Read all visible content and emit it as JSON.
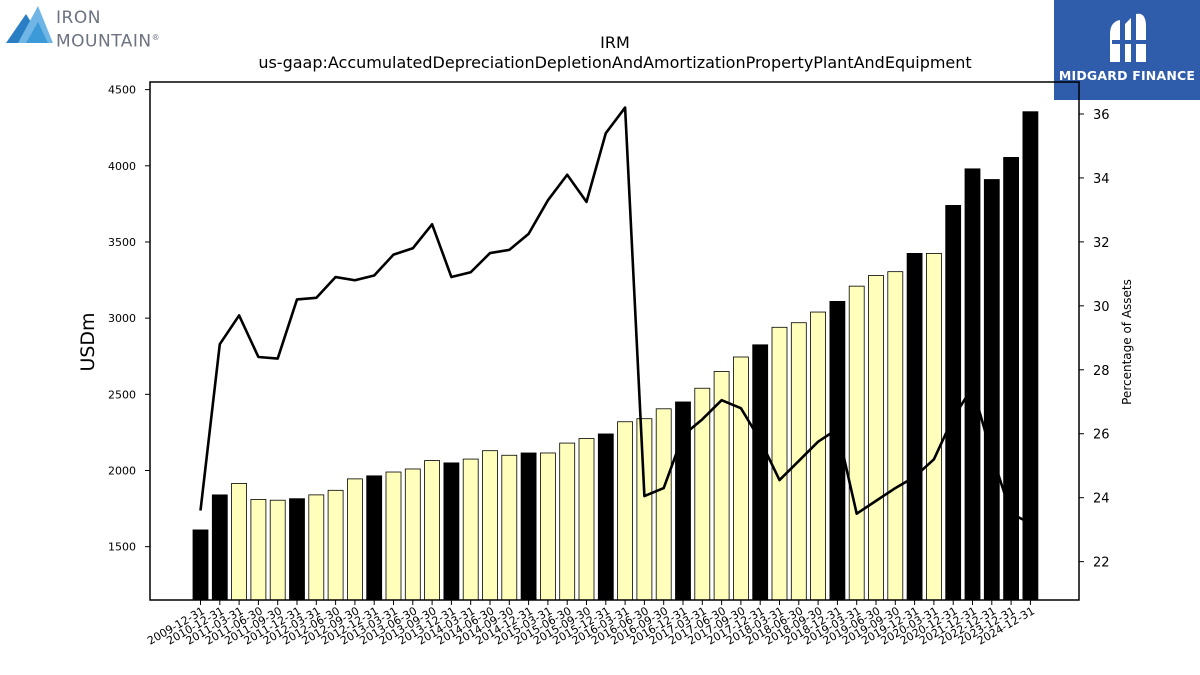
{
  "brand": {
    "left": {
      "line1": "IRON",
      "line2": "MOUNTAIN",
      "reg": "®"
    },
    "right": {
      "name": "MIDGARD FINANCE"
    }
  },
  "chart_data": {
    "type": "bar+line",
    "title": "IRM",
    "subtitle": "us-gaap:AccumulatedDepreciationDepletionAndAmortizationPropertyPlantAndEquipment",
    "ylabel": "USDm",
    "y2label": "Percentage of Assets",
    "ylim": [
      1150,
      4550
    ],
    "y2lim": [
      20.8,
      37.0
    ],
    "yticks": [
      1500,
      2000,
      2500,
      3000,
      3500,
      4000,
      4500
    ],
    "y2ticks": [
      22,
      24,
      26,
      28,
      30,
      32,
      34,
      36
    ],
    "categories": [
      "2009-12-31",
      "2010-12-31",
      "2011-03-31",
      "2011-06-30",
      "2011-09-30",
      "2011-12-31",
      "2012-03-31",
      "2012-06-30",
      "2012-09-30",
      "2012-12-31",
      "2013-03-31",
      "2013-06-30",
      "2013-09-30",
      "2013-12-31",
      "2014-03-31",
      "2014-06-30",
      "2014-09-30",
      "2014-12-31",
      "2015-03-31",
      "2015-06-30",
      "2015-09-30",
      "2015-12-31",
      "2016-03-31",
      "2016-06-30",
      "2016-09-30",
      "2016-12-31",
      "2017-03-31",
      "2017-06-30",
      "2017-09-30",
      "2017-12-31",
      "2018-03-31",
      "2018-06-30",
      "2018-09-30",
      "2018-12-31",
      "2019-03-31",
      "2019-06-30",
      "2019-09-30",
      "2019-12-31",
      "2020-03-31",
      "2020-12-31",
      "2021-12-31",
      "2022-12-31",
      "2023-12-31",
      "2024-12-31"
    ],
    "series": [
      {
        "type": "bar",
        "values": [
          1610,
          1840,
          1915,
          1810,
          1805,
          1815,
          1840,
          1870,
          1945,
          1965,
          1990,
          2010,
          2065,
          2050,
          2075,
          2130,
          2100,
          2115,
          2115,
          2180,
          2210,
          2240,
          2320,
          2340,
          2405,
          2450,
          2540,
          2650,
          2745,
          2825,
          2940,
          2970,
          3040,
          3110,
          3210,
          3280,
          3305,
          3425,
          3425,
          3740,
          3980,
          3910,
          4055,
          4355
        ],
        "period": [
          "FY",
          "FY",
          "Q",
          "Q",
          "Q",
          "FY",
          "Q",
          "Q",
          "Q",
          "FY",
          "Q",
          "Q",
          "Q",
          "FY",
          "Q",
          "Q",
          "Q",
          "FY",
          "Q",
          "Q",
          "Q",
          "FY",
          "Q",
          "Q",
          "Q",
          "FY",
          "Q",
          "Q",
          "Q",
          "FY",
          "Q",
          "Q",
          "Q",
          "FY",
          "Q",
          "Q",
          "Q",
          "FY",
          "Q",
          "FY",
          "FY",
          "FY",
          "FY",
          "FY"
        ],
        "colors": {
          "FY": "#000000",
          "Q": "#ffffbb"
        }
      },
      {
        "type": "line",
        "axis": "right",
        "color": "#000000",
        "values": [
          23.6,
          28.8,
          29.7,
          28.4,
          28.35,
          30.2,
          30.25,
          30.9,
          30.8,
          30.95,
          31.6,
          31.8,
          32.55,
          30.9,
          31.05,
          31.65,
          31.75,
          32.25,
          33.3,
          34.1,
          33.25,
          35.4,
          36.2,
          24.05,
          24.3,
          25.95,
          26.45,
          27.05,
          26.8,
          25.8,
          24.55,
          25.15,
          25.75,
          26.15,
          23.5,
          23.9,
          24.3,
          24.65,
          25.2,
          26.5,
          27.45,
          25.35,
          23.5,
          23.2
        ]
      }
    ],
    "grid": false,
    "legend": "none"
  }
}
